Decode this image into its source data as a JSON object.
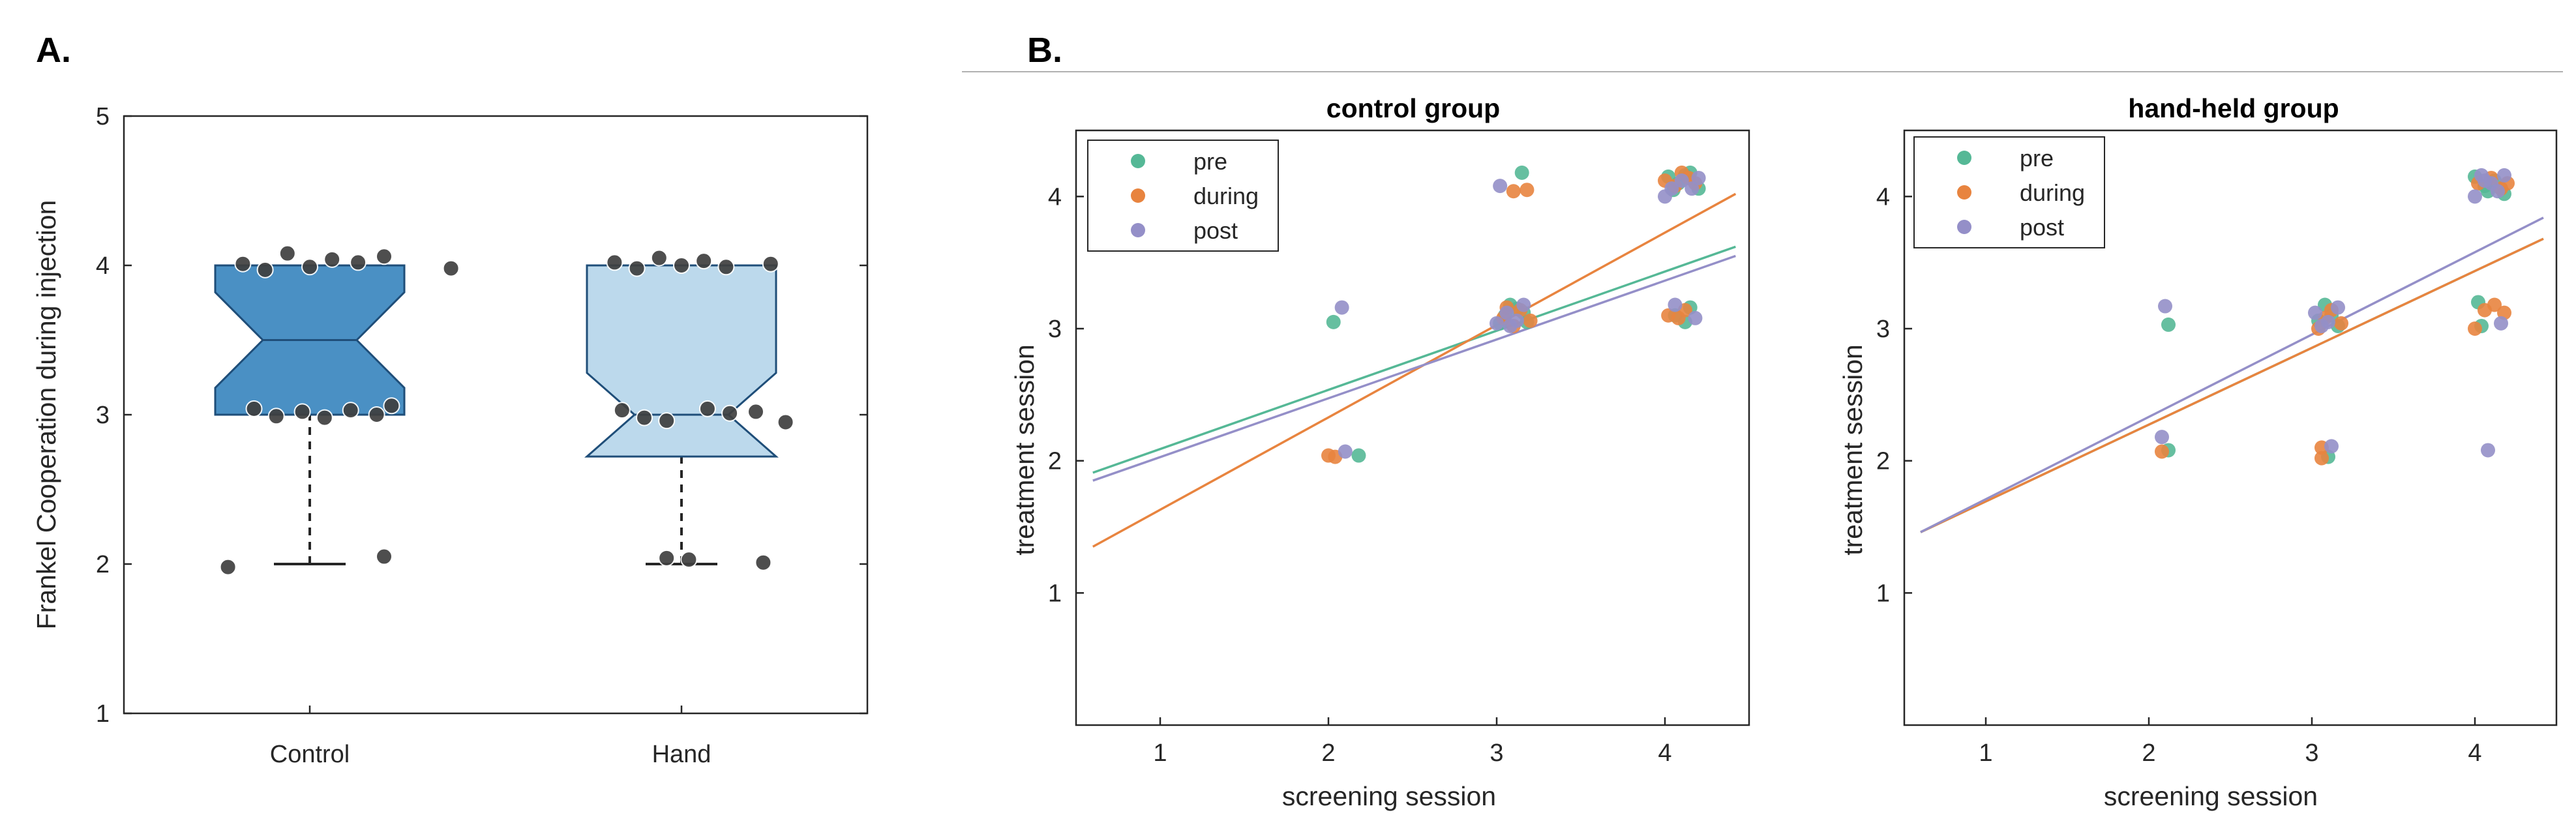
{
  "figure": {
    "panel_a_label": "A.",
    "panel_b_label": "B."
  },
  "colors": {
    "control_box": "#4a90c4",
    "hand_box": "#bcd9ec",
    "box_edge": "#1f4e79",
    "dots": "#3f3f3f",
    "pre": "#55b896",
    "during": "#e8843f",
    "post": "#948fc8"
  },
  "chart_data": [
    {
      "id": "panel-a",
      "type": "box",
      "title": "",
      "ylabel": "Frankel Cooperation during injection",
      "xlabel": "",
      "ylim": [
        1,
        5
      ],
      "yticks": [
        "1",
        "2",
        "3",
        "4",
        "5"
      ],
      "categories": [
        "Control",
        "Hand"
      ],
      "boxes": [
        {
          "name": "Control",
          "min": 2,
          "q1": 3,
          "median": 3.5,
          "q3": 4,
          "max": 4,
          "notch_low": 3.18,
          "notch_high": 3.82,
          "points": [
            {
              "x": 0.82,
              "y": 4.01
            },
            {
              "x": 0.88,
              "y": 3.97
            },
            {
              "x": 0.94,
              "y": 4.08
            },
            {
              "x": 1.0,
              "y": 3.99
            },
            {
              "x": 1.06,
              "y": 4.04
            },
            {
              "x": 1.13,
              "y": 4.02
            },
            {
              "x": 1.2,
              "y": 4.06
            },
            {
              "x": 1.38,
              "y": 3.98
            },
            {
              "x": 0.85,
              "y": 3.04
            },
            {
              "x": 0.91,
              "y": 2.99
            },
            {
              "x": 0.98,
              "y": 3.02
            },
            {
              "x": 1.04,
              "y": 2.98
            },
            {
              "x": 1.11,
              "y": 3.03
            },
            {
              "x": 1.18,
              "y": 3.0
            },
            {
              "x": 1.22,
              "y": 3.06
            },
            {
              "x": 0.78,
              "y": 1.98
            },
            {
              "x": 1.2,
              "y": 2.05
            }
          ]
        },
        {
          "name": "Hand",
          "min": 2,
          "q1": 2.72,
          "median": 3,
          "q3": 4,
          "max": 4,
          "notch_low": 2.72,
          "notch_high": 3.28,
          "points": [
            {
              "x": 1.82,
              "y": 4.02
            },
            {
              "x": 1.88,
              "y": 3.98
            },
            {
              "x": 1.94,
              "y": 4.05
            },
            {
              "x": 2.0,
              "y": 4.0
            },
            {
              "x": 2.06,
              "y": 4.03
            },
            {
              "x": 2.12,
              "y": 3.99
            },
            {
              "x": 2.24,
              "y": 4.01
            },
            {
              "x": 1.84,
              "y": 3.03
            },
            {
              "x": 1.9,
              "y": 2.98
            },
            {
              "x": 1.96,
              "y": 2.96
            },
            {
              "x": 2.07,
              "y": 3.04
            },
            {
              "x": 2.13,
              "y": 3.01
            },
            {
              "x": 2.2,
              "y": 3.02
            },
            {
              "x": 2.28,
              "y": 2.95
            },
            {
              "x": 1.96,
              "y": 2.04
            },
            {
              "x": 2.02,
              "y": 2.03
            },
            {
              "x": 2.22,
              "y": 2.01
            }
          ]
        }
      ]
    },
    {
      "id": "panel-b-control",
      "type": "scatter",
      "title": "control group",
      "xlabel": "screening session",
      "ylabel": "treatment session",
      "xlim": [
        0.5,
        4.5
      ],
      "ylim": [
        0,
        4.5
      ],
      "xticks": [
        "1",
        "2",
        "3",
        "4"
      ],
      "yticks": [
        "1",
        "2",
        "3",
        "4"
      ],
      "legend": {
        "position": "top-left",
        "entries": [
          "pre",
          "during",
          "post"
        ]
      },
      "series": [
        {
          "name": "pre",
          "points": [
            [
              2.03,
              3.05
            ],
            [
              2.18,
              2.04
            ],
            [
              3.15,
              4.18
            ],
            [
              3.05,
              3.1
            ],
            [
              3.12,
              3.15
            ],
            [
              3.18,
              3.05
            ],
            [
              3.08,
              3.18
            ],
            [
              3.02,
              3.04
            ],
            [
              3.16,
              3.12
            ],
            [
              4.02,
              4.15
            ],
            [
              4.08,
              4.1
            ],
            [
              4.15,
              4.18
            ],
            [
              4.2,
              4.06
            ],
            [
              4.05,
              4.05
            ],
            [
              4.12,
              4.16
            ],
            [
              4.06,
              3.1
            ],
            [
              4.12,
              3.05
            ],
            [
              4.15,
              3.16
            ]
          ],
          "fit": [
            [
              0.6,
              1.91
            ],
            [
              4.42,
              3.62
            ]
          ]
        },
        {
          "name": "during",
          "points": [
            [
              2.0,
              2.04
            ],
            [
              2.04,
              2.03
            ],
            [
              3.1,
              4.04
            ],
            [
              3.18,
              4.05
            ],
            [
              3.04,
              3.08
            ],
            [
              3.1,
              3.02
            ],
            [
              3.2,
              3.06
            ],
            [
              3.14,
              3.14
            ],
            [
              3.06,
              3.16
            ],
            [
              4.0,
              4.12
            ],
            [
              4.06,
              4.08
            ],
            [
              4.14,
              4.14
            ],
            [
              4.18,
              4.1
            ],
            [
              4.1,
              4.18
            ],
            [
              4.02,
              3.1
            ],
            [
              4.08,
              3.08
            ],
            [
              4.12,
              3.14
            ]
          ],
          "fit": [
            [
              0.6,
              1.35
            ],
            [
              4.42,
              4.02
            ]
          ]
        },
        {
          "name": "post",
          "points": [
            [
              2.08,
              3.16
            ],
            [
              2.1,
              2.07
            ],
            [
              3.02,
              4.08
            ],
            [
              3.0,
              3.04
            ],
            [
              3.06,
              3.12
            ],
            [
              3.12,
              3.06
            ],
            [
              3.16,
              3.18
            ],
            [
              3.08,
              3.02
            ],
            [
              4.0,
              4.0
            ],
            [
              4.04,
              4.06
            ],
            [
              4.1,
              4.12
            ],
            [
              4.16,
              4.06
            ],
            [
              4.2,
              4.14
            ],
            [
              4.06,
              3.18
            ],
            [
              4.18,
              3.08
            ]
          ],
          "fit": [
            [
              0.6,
              1.85
            ],
            [
              4.42,
              3.55
            ]
          ]
        }
      ]
    },
    {
      "id": "panel-b-hand",
      "type": "scatter",
      "title": "hand-held group",
      "xlabel": "screening session",
      "ylabel": "treatment session",
      "xlim": [
        0.5,
        4.5
      ],
      "ylim": [
        0,
        4.5
      ],
      "xticks": [
        "1",
        "2",
        "3",
        "4"
      ],
      "yticks": [
        "1",
        "2",
        "3",
        "4"
      ],
      "legend": {
        "position": "top-left",
        "entries": [
          "pre",
          "during",
          "post"
        ]
      },
      "series": [
        {
          "name": "pre",
          "points": [
            [
              2.12,
              3.03
            ],
            [
              2.12,
              2.08
            ],
            [
              3.08,
              3.18
            ],
            [
              3.04,
              3.06
            ],
            [
              3.12,
              3.1
            ],
            [
              3.16,
              3.02
            ],
            [
              3.1,
              2.03
            ],
            [
              4.02,
              3.2
            ],
            [
              4.04,
              3.02
            ],
            [
              4.0,
              4.15
            ],
            [
              4.06,
              4.08
            ],
            [
              4.12,
              4.12
            ],
            [
              4.18,
              4.02
            ],
            [
              4.08,
              4.04
            ]
          ],
          "fit": [
            [
              0.6,
              1.46
            ],
            [
              4.42,
              3.68
            ]
          ]
        },
        {
          "name": "during",
          "points": [
            [
              2.08,
              2.07
            ],
            [
              3.06,
              2.02
            ],
            [
              3.06,
              2.1
            ],
            [
              3.04,
              3.0
            ],
            [
              3.12,
              3.14
            ],
            [
              3.18,
              3.04
            ],
            [
              3.08,
              3.08
            ],
            [
              4.0,
              3.0
            ],
            [
              4.06,
              3.14
            ],
            [
              4.12,
              3.18
            ],
            [
              4.18,
              3.12
            ],
            [
              4.02,
              4.1
            ],
            [
              4.1,
              4.14
            ],
            [
              4.16,
              4.06
            ],
            [
              4.2,
              4.1
            ]
          ],
          "fit": [
            [
              0.6,
              1.46
            ],
            [
              4.42,
              3.68
            ]
          ]
        },
        {
          "name": "post",
          "points": [
            [
              2.1,
              3.17
            ],
            [
              2.08,
              2.18
            ],
            [
              3.12,
              2.11
            ],
            [
              3.02,
              3.12
            ],
            [
              3.1,
              3.05
            ],
            [
              3.16,
              3.16
            ],
            [
              3.06,
              3.02
            ],
            [
              4.08,
              2.08
            ],
            [
              4.16,
              3.04
            ],
            [
              4.0,
              4.0
            ],
            [
              4.04,
              4.16
            ],
            [
              4.1,
              4.1
            ],
            [
              4.14,
              4.04
            ],
            [
              4.18,
              4.16
            ],
            [
              4.06,
              4.12
            ]
          ],
          "fit": [
            [
              0.6,
              1.46
            ],
            [
              4.42,
              3.84
            ]
          ]
        }
      ]
    }
  ]
}
